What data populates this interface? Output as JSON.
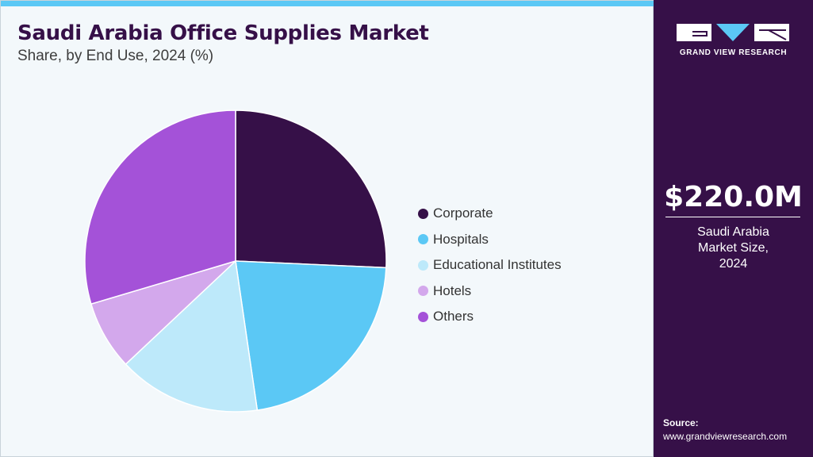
{
  "chart_data": {
    "type": "pie",
    "title": "Saudi Arabia Office Supplies Market",
    "subtitle": "Share, by End Use, 2024 (%)",
    "categories": [
      "Corporate",
      "Hospitals",
      "Educational Institutes",
      "Hotels",
      "Others"
    ],
    "values": [
      25.7,
      22.0,
      15.3,
      7.4,
      29.6
    ],
    "colors": [
      "#361048",
      "#5bc8f5",
      "#bde9fa",
      "#d3a8ec",
      "#a452d8"
    ],
    "legend_position": "right"
  },
  "sidebar": {
    "logo_text": "GRAND VIEW RESEARCH",
    "market_value": "$220.0M",
    "market_caption": [
      "Saudi Arabia",
      "Market Size,",
      "2024"
    ],
    "source_label": "Source:",
    "source_url": "www.grandviewresearch.com"
  }
}
